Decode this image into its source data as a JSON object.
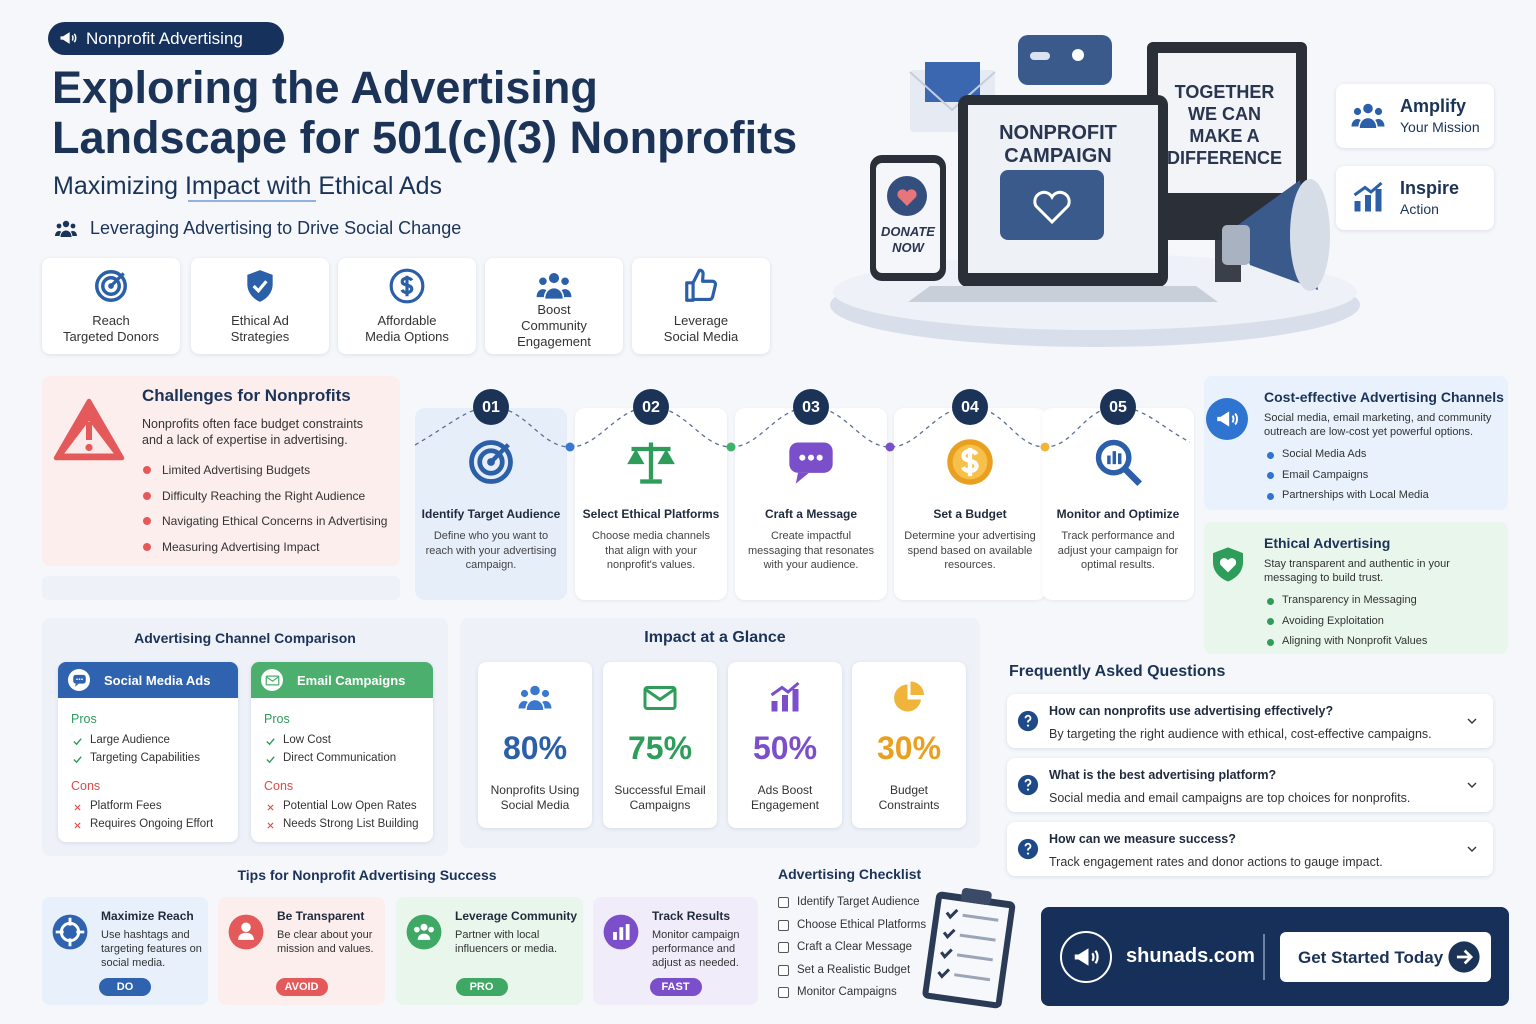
{
  "header": {
    "badge": "Nonprofit Advertising",
    "title_line1": "Exploring the Advertising",
    "title_line2": "Landscape for 501(c)(3) Nonprofits",
    "subtitle": "Maximizing Impact with Ethical Ads",
    "tagline": "Leveraging Advertising to Drive Social Change"
  },
  "features": [
    [
      "Reach",
      "Targeted Donors"
    ],
    [
      "Ethical Ad",
      "Strategies"
    ],
    [
      "Affordable",
      "Media Options"
    ],
    [
      "Boost",
      "Community",
      "Engagement"
    ],
    [
      "Leverage",
      "Social Media"
    ]
  ],
  "hero": {
    "laptop": [
      "NONPROFIT",
      "CAMPAIGN"
    ],
    "monitor": [
      "TOGETHER",
      "WE CAN",
      "MAKE A",
      "DIFFERENCE"
    ],
    "phone": [
      "DONATE",
      "NOW"
    ]
  },
  "side_cards": [
    {
      "title": "Amplify",
      "subtitle": "Your Mission"
    },
    {
      "title": "Inspire",
      "subtitle": "Action"
    }
  ],
  "challenges": {
    "title": "Challenges for Nonprofits",
    "description": "Nonprofits often face budget constraints and a lack of expertise in advertising.",
    "items": [
      "Limited Advertising Budgets",
      "Difficulty Reaching the Right Audience",
      "Navigating Ethical Concerns in Advertising",
      "Measuring Advertising Impact"
    ]
  },
  "steps": [
    {
      "number": "01",
      "title": "Identify Target Audience",
      "description": "Define who you want to reach with your advertising campaign."
    },
    {
      "number": "02",
      "title": "Select Ethical Platforms",
      "description": "Choose media channels that align with your nonprofit's values."
    },
    {
      "number": "03",
      "title": "Craft a Message",
      "description": "Create impactful messaging that resonates with your audience."
    },
    {
      "number": "04",
      "title": "Set a Budget",
      "description": "Determine your advertising spend based on available resources."
    },
    {
      "number": "05",
      "title": "Monitor and Optimize",
      "description": "Track performance and adjust your campaign for optimal results."
    }
  ],
  "cost_effective": {
    "title": "Cost-effective Advertising Channels",
    "description": "Social media, email marketing, and community outreach are low-cost yet powerful options.",
    "items": [
      "Social Media Ads",
      "Email Campaigns",
      "Partnerships with Local Media"
    ]
  },
  "ethical": {
    "title": "Ethical Advertising",
    "description": "Stay transparent and authentic in your messaging to build trust.",
    "items": [
      "Transparency in Messaging",
      "Avoiding Exploitation",
      "Aligning with Nonprofit Values"
    ]
  },
  "comparison": {
    "title": "Advertising Channel Comparison",
    "columns": [
      {
        "name": "Social Media Ads",
        "pros_label": "Pros",
        "pros": [
          "Large Audience",
          "Targeting Capabilities"
        ],
        "cons_label": "Cons",
        "cons": [
          "Platform Fees",
          "Requires Ongoing Effort"
        ]
      },
      {
        "name": "Email Campaigns",
        "pros_label": "Pros",
        "pros": [
          "Low Cost",
          "Direct Communication"
        ],
        "cons_label": "Cons",
        "cons": [
          "Potential Low Open Rates",
          "Needs Strong List Building"
        ]
      }
    ]
  },
  "impact": {
    "title": "Impact at a Glance",
    "stats": [
      {
        "value": "80%",
        "label": [
          "Nonprofits Using",
          "Social Media"
        ]
      },
      {
        "value": "75%",
        "label": [
          "Successful Email",
          "Campaigns"
        ]
      },
      {
        "value": "50%",
        "label": [
          "Ads Boost",
          "Engagement"
        ]
      },
      {
        "value": "30%",
        "label": [
          "Budget",
          "Constraints"
        ]
      }
    ]
  },
  "faq": {
    "title": "Frequently Asked Questions",
    "items": [
      {
        "question": "How can nonprofits use advertising effectively?",
        "answer": "By targeting the right audience with ethical, cost-effective campaigns."
      },
      {
        "question": "What is the best advertising platform?",
        "answer": "Social media and email campaigns are top choices for nonprofits."
      },
      {
        "question": "How can we measure success?",
        "answer": "Track engagement rates and donor actions to gauge impact."
      }
    ]
  },
  "tips": {
    "title": "Tips for Nonprofit Advertising Success",
    "items": [
      {
        "title": "Maximize Reach",
        "text": "Use hashtags and targeting features on social media.",
        "tag": "DO"
      },
      {
        "title": "Be Transparent",
        "text": "Be clear about your mission and values.",
        "tag": "AVOID"
      },
      {
        "title": "Leverage Community",
        "text": "Partner with local influencers or media.",
        "tag": "PRO"
      },
      {
        "title": "Track Results",
        "text": "Monitor campaign performance and adjust as needed.",
        "tag": "FAST"
      }
    ]
  },
  "checklist": {
    "title": "Advertising Checklist",
    "items": [
      "Identify Target Audience",
      "Choose Ethical Platforms",
      "Craft a Clear Message",
      "Set a Realistic Budget",
      "Monitor Campaigns"
    ]
  },
  "cta": {
    "site": "shunads.com",
    "button": "Get Started Today"
  }
}
